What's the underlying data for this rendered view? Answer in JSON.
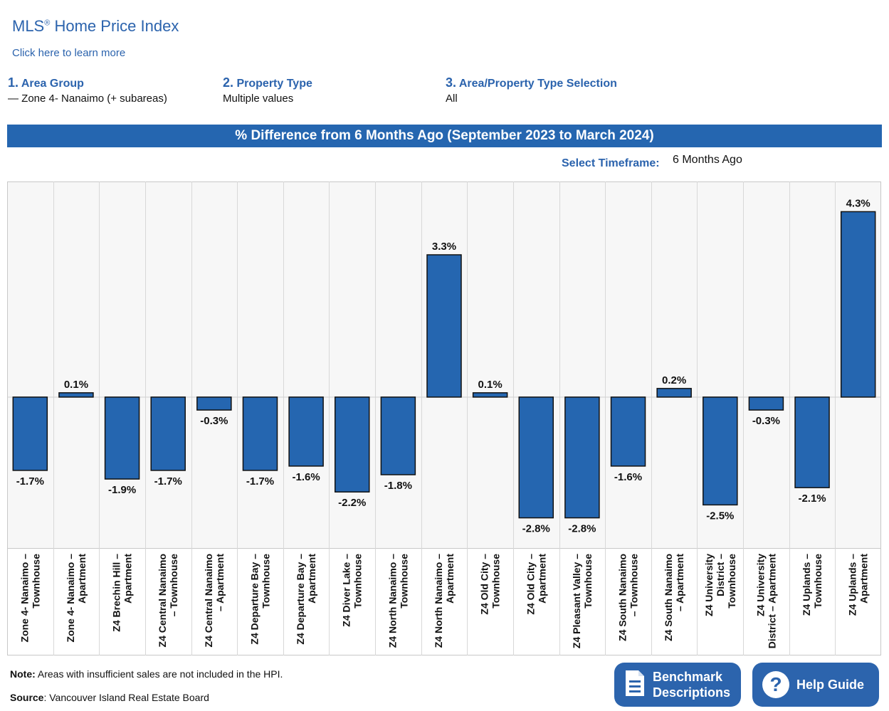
{
  "header": {
    "title": "MLS",
    "title_mark": "®",
    "title_rest": " Home Price Index",
    "learn_more": "Click here to learn more"
  },
  "filters": [
    {
      "num": "1.",
      "label": "Area Group",
      "value": "— Zone 4- Nanaimo (+ subareas)"
    },
    {
      "num": "2.",
      "label": "Property Type",
      "value": "Multiple values"
    },
    {
      "num": "3.",
      "label": "Area/Property Type Selection",
      "value": "All"
    }
  ],
  "banner": "% Difference from 6 Months Ago (September 2023 to March 2024)",
  "timeframe": {
    "label": "Select Timeframe:",
    "value": "6 Months Ago"
  },
  "chart_data": {
    "type": "bar",
    "categories": [
      [
        "Zone 4- Nanaimo –",
        "Townhouse"
      ],
      [
        "Zone 4- Nanaimo –",
        "Apartment"
      ],
      [
        "Z4 Brechin Hill –",
        "Apartment"
      ],
      [
        "Z4 Central Nanaimo",
        "– Townhouse"
      ],
      [
        "Z4 Central Nanaimo",
        "– Apartment"
      ],
      [
        "Z4 Departure Bay –",
        "Townhouse"
      ],
      [
        "Z4 Departure Bay –",
        "Apartment"
      ],
      [
        "Z4 Diver Lake –",
        "Townhouse"
      ],
      [
        "Z4 North Nanaimo –",
        "Townhouse"
      ],
      [
        "Z4 North Nanaimo –",
        "Apartment"
      ],
      [
        "Z4 Old City –",
        "Townhouse"
      ],
      [
        "Z4 Old City –",
        "Apartment"
      ],
      [
        "Z4 Pleasant Valley –",
        "Townhouse"
      ],
      [
        "Z4 South Nanaimo",
        "– Townhouse"
      ],
      [
        "Z4 South Nanaimo",
        "– Apartment"
      ],
      [
        "Z4 University",
        "District –",
        "Townhouse"
      ],
      [
        "Z4 University",
        "District – Apartment"
      ],
      [
        "Z4 Uplands –",
        "Townhouse"
      ],
      [
        "Z4 Uplands –",
        "Apartment"
      ]
    ],
    "values": [
      -1.7,
      0.1,
      -1.9,
      -1.7,
      -0.3,
      -1.7,
      -1.6,
      -2.2,
      -1.8,
      3.3,
      0.1,
      -2.8,
      -2.8,
      -1.6,
      0.2,
      -2.5,
      -0.3,
      -2.1,
      4.3
    ],
    "labels": [
      "-1.7%",
      "0.1%",
      "-1.9%",
      "-1.7%",
      "-0.3%",
      "-1.7%",
      "-1.6%",
      "-2.2%",
      "-1.8%",
      "3.3%",
      "0.1%",
      "-2.8%",
      "-2.8%",
      "-1.6%",
      "0.2%",
      "-2.5%",
      "-0.3%",
      "-2.1%",
      "4.3%"
    ],
    "ylim": [
      -3.5,
      5.0
    ],
    "grid": false,
    "colors": {
      "bar": "#2566b0",
      "plot_bg": "#f7f7f7",
      "border": "#c8c8c8"
    }
  },
  "footer": {
    "note_label": "Note:",
    "note_text": " Areas with insufficient sales are not included in the HPI.",
    "source_label": "Source",
    "source_text": ": Vancouver Island Real Estate Board"
  },
  "buttons": {
    "benchmark_line1": "Benchmark",
    "benchmark_line2": "Descriptions",
    "help": "Help Guide"
  }
}
